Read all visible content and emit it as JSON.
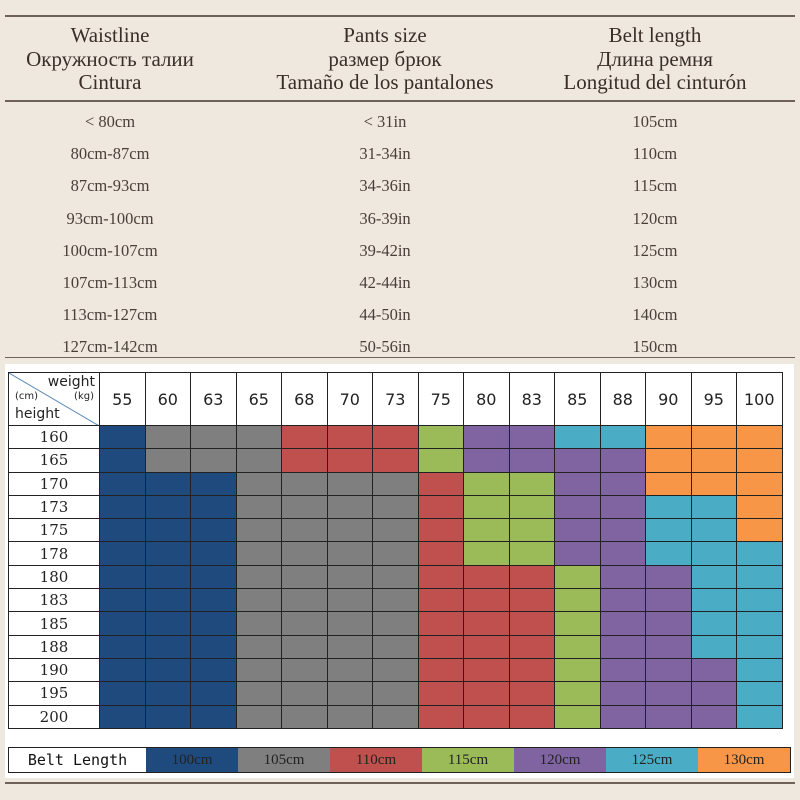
{
  "size_table": {
    "columns": [
      {
        "header": [
          "Waistline",
          "Окружность талии",
          "Cintura"
        ],
        "values": [
          "< 80cm",
          "80cm-87cm",
          "87cm-93cm",
          "93cm-100cm",
          "100cm-107cm",
          "107cm-113cm",
          "113cm-127cm",
          "127cm-142cm"
        ]
      },
      {
        "header": [
          "Pants size",
          "размер брюк",
          "Tamaño de los pantalones"
        ],
        "values": [
          "< 31in",
          "31-34in",
          "34-36in",
          "36-39in",
          "39-42in",
          "42-44in",
          "44-50in",
          "50-56in"
        ]
      },
      {
        "header": [
          "Belt length",
          "Длина ремня",
          "Longitud del cinturón"
        ],
        "values": [
          "105cm",
          "110cm",
          "115cm",
          "120cm",
          "125cm",
          "130cm",
          "140cm",
          "150cm"
        ]
      }
    ]
  },
  "grid": {
    "corner": {
      "weight": "weight",
      "kg": "(kg)",
      "cm": "(cm)",
      "height": "height"
    },
    "weights": [
      "55",
      "60",
      "63",
      "65",
      "68",
      "70",
      "73",
      "75",
      "80",
      "83",
      "85",
      "88",
      "90",
      "95",
      "100"
    ],
    "heights": [
      "160",
      "165",
      "170",
      "173",
      "175",
      "178",
      "180",
      "183",
      "185",
      "188",
      "190",
      "195",
      "200"
    ],
    "cells": [
      [
        "100",
        "105",
        "105",
        "105",
        "110",
        "110",
        "110",
        "115",
        "120",
        "120",
        "125",
        "125",
        "130",
        "130",
        "130"
      ],
      [
        "100",
        "105",
        "105",
        "105",
        "110",
        "110",
        "110",
        "115",
        "120",
        "120",
        "120",
        "120",
        "130",
        "130",
        "130"
      ],
      [
        "100",
        "100",
        "100",
        "105",
        "105",
        "105",
        "105",
        "110",
        "115",
        "115",
        "120",
        "120",
        "130",
        "130",
        "130"
      ],
      [
        "100",
        "100",
        "100",
        "105",
        "105",
        "105",
        "105",
        "110",
        "115",
        "115",
        "120",
        "120",
        "125",
        "125",
        "130"
      ],
      [
        "100",
        "100",
        "100",
        "105",
        "105",
        "105",
        "105",
        "110",
        "115",
        "115",
        "120",
        "120",
        "125",
        "125",
        "130"
      ],
      [
        "100",
        "100",
        "100",
        "105",
        "105",
        "105",
        "105",
        "110",
        "115",
        "115",
        "120",
        "120",
        "125",
        "125",
        "125"
      ],
      [
        "100",
        "100",
        "100",
        "105",
        "105",
        "105",
        "105",
        "110",
        "110",
        "110",
        "115",
        "120",
        "120",
        "125",
        "125"
      ],
      [
        "100",
        "100",
        "100",
        "105",
        "105",
        "105",
        "105",
        "110",
        "110",
        "110",
        "115",
        "120",
        "120",
        "125",
        "125"
      ],
      [
        "100",
        "100",
        "100",
        "105",
        "105",
        "105",
        "105",
        "110",
        "110",
        "110",
        "115",
        "120",
        "120",
        "125",
        "125"
      ],
      [
        "100",
        "100",
        "100",
        "105",
        "105",
        "105",
        "105",
        "110",
        "110",
        "110",
        "115",
        "120",
        "120",
        "125",
        "125"
      ],
      [
        "100",
        "100",
        "100",
        "105",
        "105",
        "105",
        "105",
        "110",
        "110",
        "110",
        "115",
        "120",
        "120",
        "120",
        "125"
      ],
      [
        "100",
        "100",
        "100",
        "105",
        "105",
        "105",
        "105",
        "110",
        "110",
        "110",
        "115",
        "120",
        "120",
        "120",
        "125"
      ],
      [
        "100",
        "100",
        "100",
        "105",
        "105",
        "105",
        "105",
        "110",
        "110",
        "110",
        "115",
        "120",
        "120",
        "120",
        "125"
      ]
    ]
  },
  "legend": {
    "label": "Belt Length",
    "items": [
      {
        "key": "100",
        "label": "100cm",
        "color": "#1f4a7e"
      },
      {
        "key": "105",
        "label": "105cm",
        "color": "#7f7f7f"
      },
      {
        "key": "110",
        "label": "110cm",
        "color": "#c0504d"
      },
      {
        "key": "115",
        "label": "115cm",
        "color": "#9bbb59"
      },
      {
        "key": "120",
        "label": "120cm",
        "color": "#8064a2"
      },
      {
        "key": "125",
        "label": "125cm",
        "color": "#4bacc6"
      },
      {
        "key": "130",
        "label": "130cm",
        "color": "#f79646"
      }
    ]
  }
}
